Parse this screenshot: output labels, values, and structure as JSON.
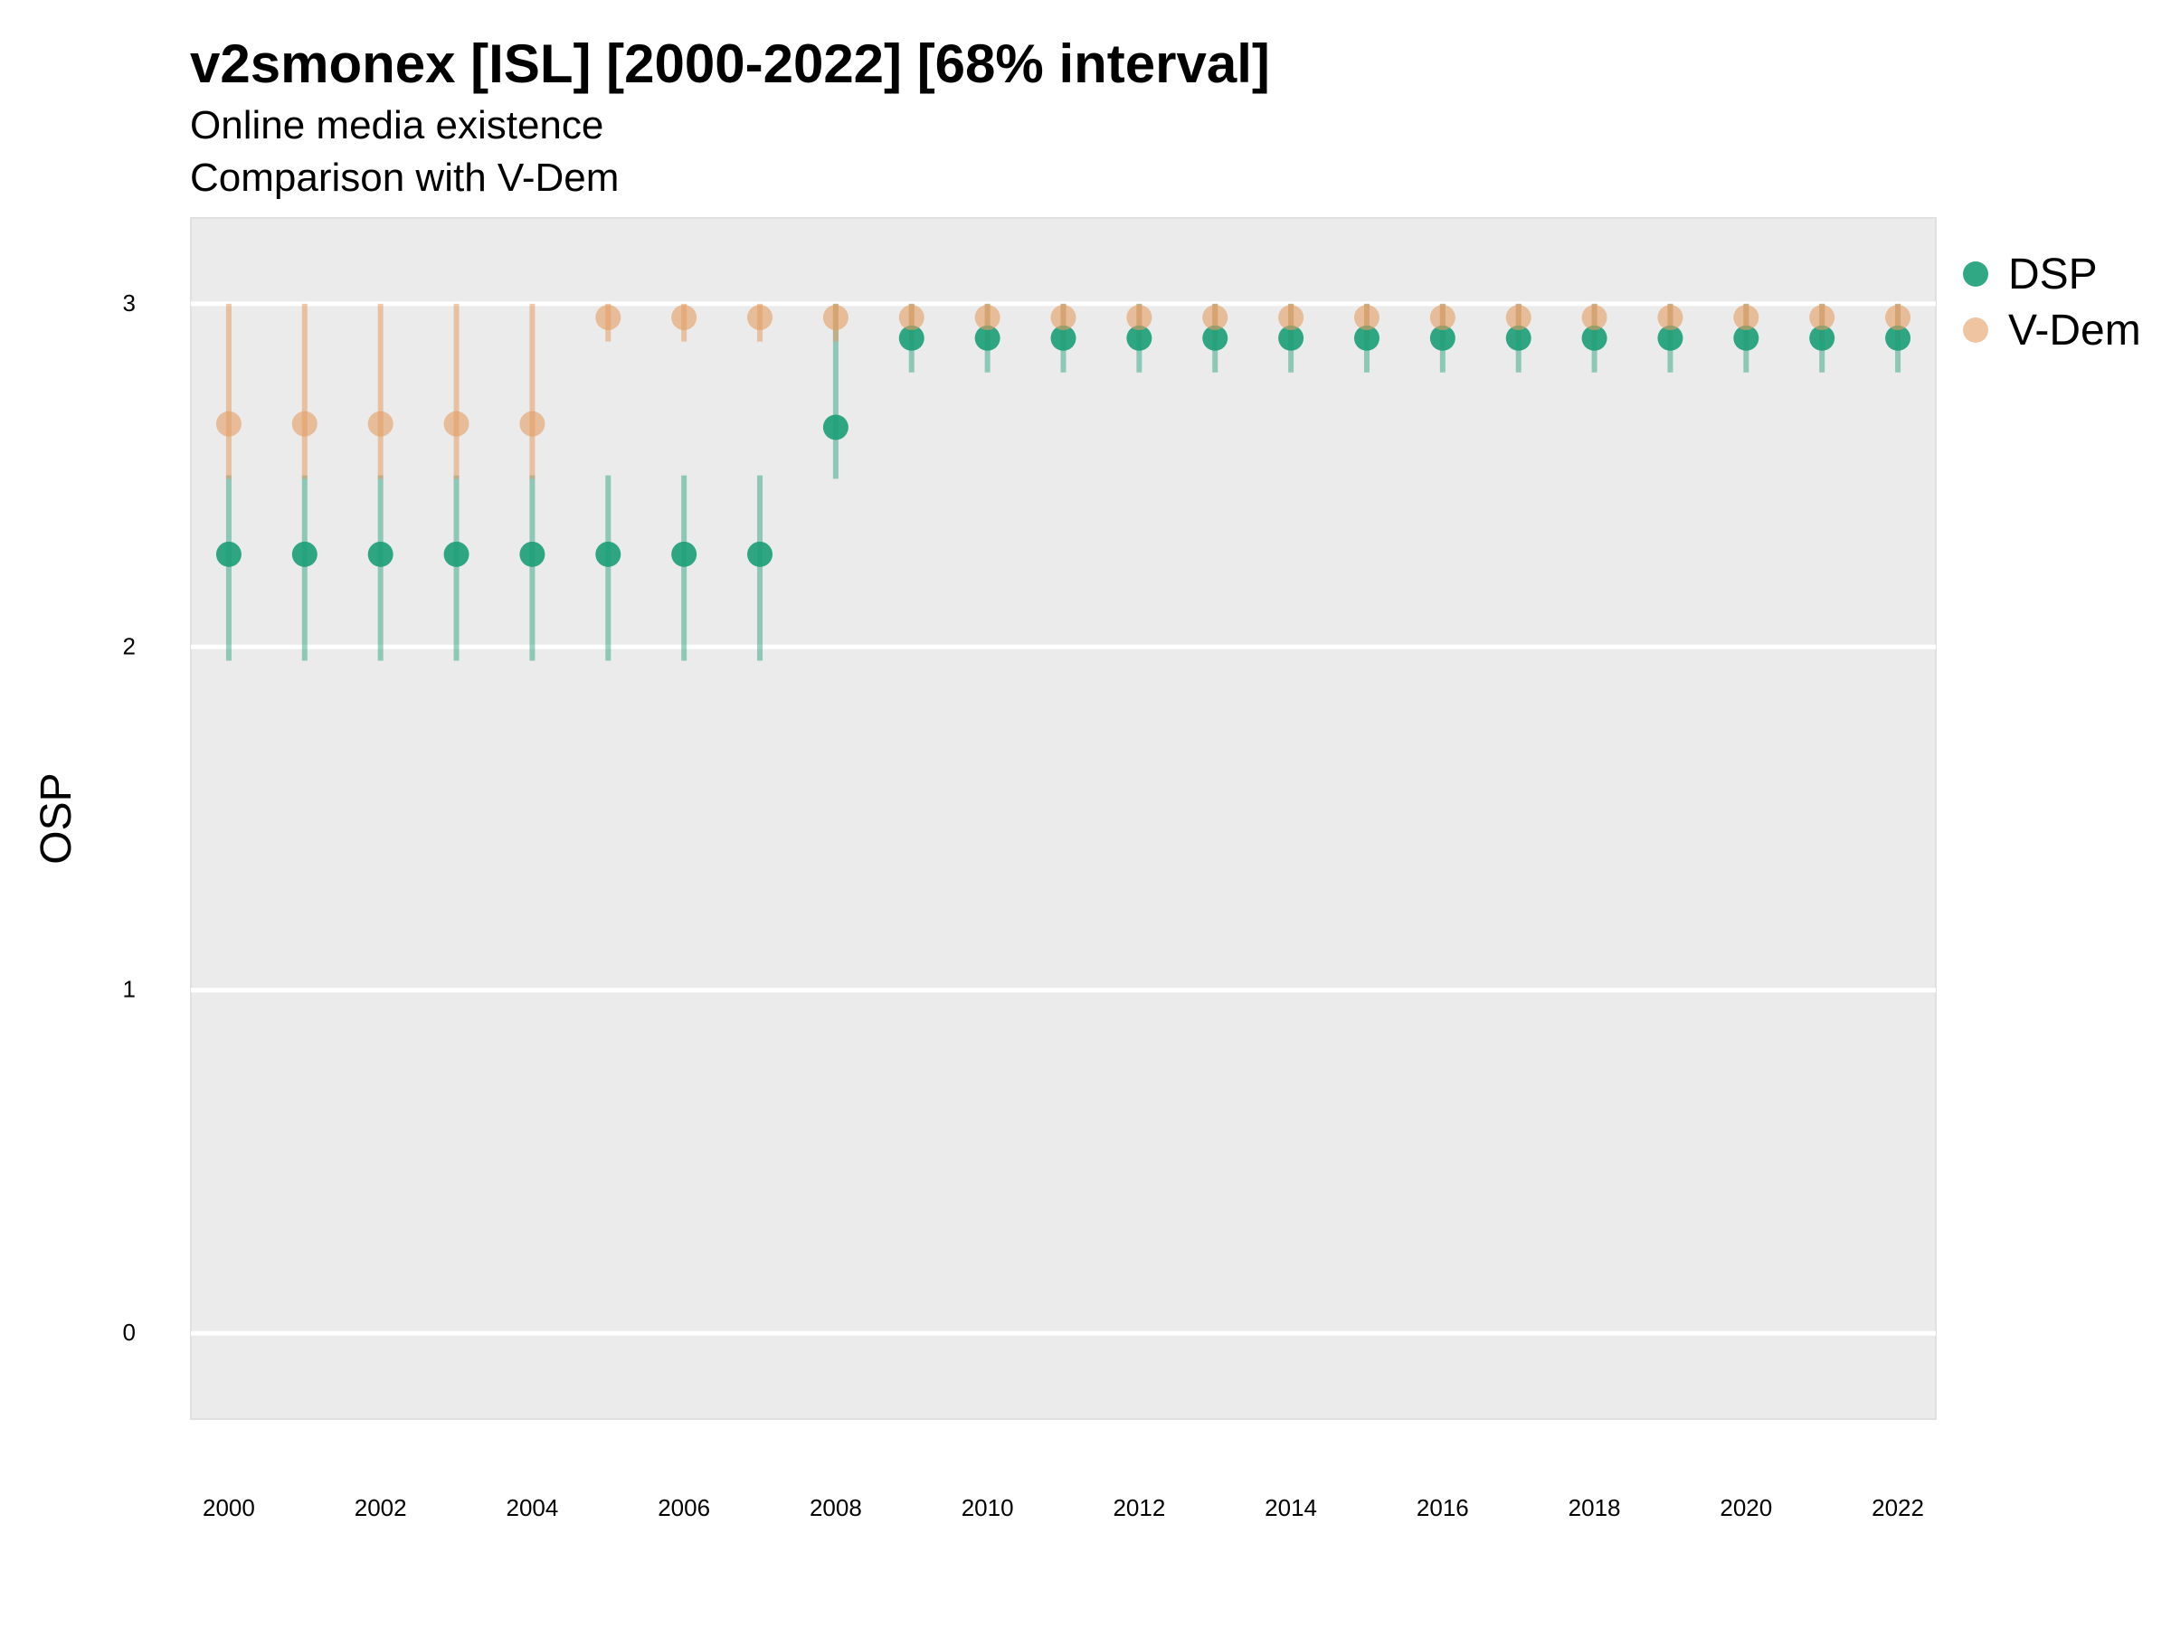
{
  "title": "v2smonex [ISL] [2000-2022] [68% interval]",
  "subtitle_line1": "Online media existence",
  "subtitle_line2": "Comparison with V-Dem",
  "colors": {
    "panel": "#EBEBEB",
    "grid": "#FFFFFF",
    "dsp": "#1B9E77",
    "vdem": "#E59C63"
  },
  "chart_data": {
    "type": "scatter",
    "ylabel": "OSP",
    "xlabel": "",
    "ylim": [
      -0.25,
      3.25
    ],
    "xlim": [
      1999.5,
      2022.5
    ],
    "yticks": [
      0,
      1,
      2,
      3
    ],
    "xticks": [
      2000,
      2002,
      2004,
      2006,
      2008,
      2010,
      2012,
      2014,
      2016,
      2018,
      2020,
      2022
    ],
    "grid": true,
    "legend_position": "right",
    "x": [
      2000,
      2001,
      2002,
      2003,
      2004,
      2005,
      2006,
      2007,
      2008,
      2009,
      2010,
      2011,
      2012,
      2013,
      2014,
      2015,
      2016,
      2017,
      2018,
      2019,
      2020,
      2021,
      2022
    ],
    "series": [
      {
        "name": "DSP",
        "values": [
          2.27,
          2.27,
          2.27,
          2.27,
          2.27,
          2.27,
          2.27,
          2.27,
          2.64,
          2.9,
          2.9,
          2.9,
          2.9,
          2.9,
          2.9,
          2.9,
          2.9,
          2.9,
          2.9,
          2.9,
          2.9,
          2.9,
          2.9
        ],
        "lower": [
          1.96,
          1.96,
          1.96,
          1.96,
          1.96,
          1.96,
          1.96,
          1.96,
          2.49,
          2.8,
          2.8,
          2.8,
          2.8,
          2.8,
          2.8,
          2.8,
          2.8,
          2.8,
          2.8,
          2.8,
          2.8,
          2.8,
          2.8
        ],
        "upper": [
          2.5,
          2.5,
          2.5,
          2.5,
          2.5,
          2.5,
          2.5,
          2.5,
          3.0,
          3.0,
          3.0,
          3.0,
          3.0,
          3.0,
          3.0,
          3.0,
          3.0,
          3.0,
          3.0,
          3.0,
          3.0,
          3.0,
          3.0
        ]
      },
      {
        "name": "V-Dem",
        "values": [
          2.65,
          2.65,
          2.65,
          2.65,
          2.65,
          2.96,
          2.96,
          2.96,
          2.96,
          2.96,
          2.96,
          2.96,
          2.96,
          2.96,
          2.96,
          2.96,
          2.96,
          2.96,
          2.96,
          2.96,
          2.96,
          2.96,
          2.96
        ],
        "lower": [
          2.49,
          2.49,
          2.49,
          2.49,
          2.49,
          2.89,
          2.89,
          2.89,
          2.89,
          2.89,
          2.89,
          2.89,
          2.89,
          2.89,
          2.89,
          2.89,
          2.89,
          2.89,
          2.89,
          2.89,
          2.89,
          2.89,
          2.89
        ],
        "upper": [
          3.0,
          3.0,
          3.0,
          3.0,
          3.0,
          3.0,
          3.0,
          3.0,
          3.0,
          3.0,
          3.0,
          3.0,
          3.0,
          3.0,
          3.0,
          3.0,
          3.0,
          3.0,
          3.0,
          3.0,
          3.0,
          3.0,
          3.0
        ]
      }
    ]
  }
}
